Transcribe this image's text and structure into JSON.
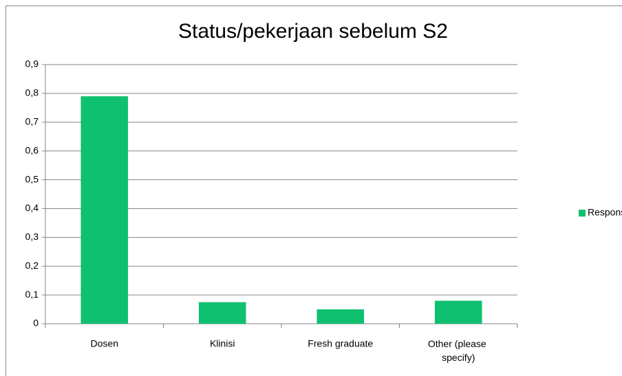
{
  "chart_data": {
    "type": "bar",
    "title": "Status/pekerjaan sebelum S2",
    "categories": [
      "Dosen",
      "Klinisi",
      "Fresh graduate",
      "Other (please specify)"
    ],
    "series": [
      {
        "name": "Responses",
        "color": "#10c071",
        "values": [
          0.79,
          0.075,
          0.05,
          0.08
        ]
      }
    ],
    "ylim": [
      0,
      0.9
    ],
    "yticks": [
      0,
      {
        "value": 0.1,
        "label": "0,1"
      },
      {
        "value": 0.2,
        "label": "0,2"
      },
      {
        "value": 0.3,
        "label": "0,3"
      },
      {
        "value": 0.4,
        "label": "0,4"
      },
      {
        "value": 0.5,
        "label": "0,5"
      },
      {
        "value": 0.6,
        "label": "0,6"
      },
      {
        "value": 0.7,
        "label": "0,7"
      },
      {
        "value": 0.8,
        "label": "0,8"
      },
      {
        "value": 0.9,
        "label": "0,9"
      }
    ],
    "grid": true,
    "legend": "right"
  }
}
